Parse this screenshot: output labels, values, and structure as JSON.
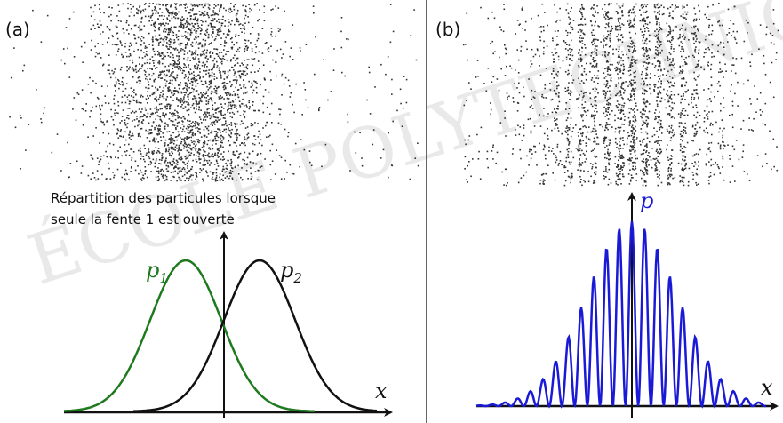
{
  "watermark": "ÉCOLE POLYTECHNIQUE",
  "panel_a": {
    "label": "(a)",
    "caption_line1": "Répartition des particules lorsque",
    "caption_line2": "seule la fente 1 est ouverte",
    "curve1": {
      "symbol": "p",
      "subscript": "1",
      "color": "#1f7a1f"
    },
    "curve2": {
      "symbol": "p",
      "subscript": "2",
      "color": "#111111"
    },
    "axis_x": "x"
  },
  "panel_b": {
    "label": "(b)",
    "curve": {
      "symbol": "p",
      "color": "#1a1ad6"
    },
    "axis_x": "x"
  },
  "colors": {
    "dots": "#333333",
    "axis": "#111111",
    "divider": "#333333"
  }
}
